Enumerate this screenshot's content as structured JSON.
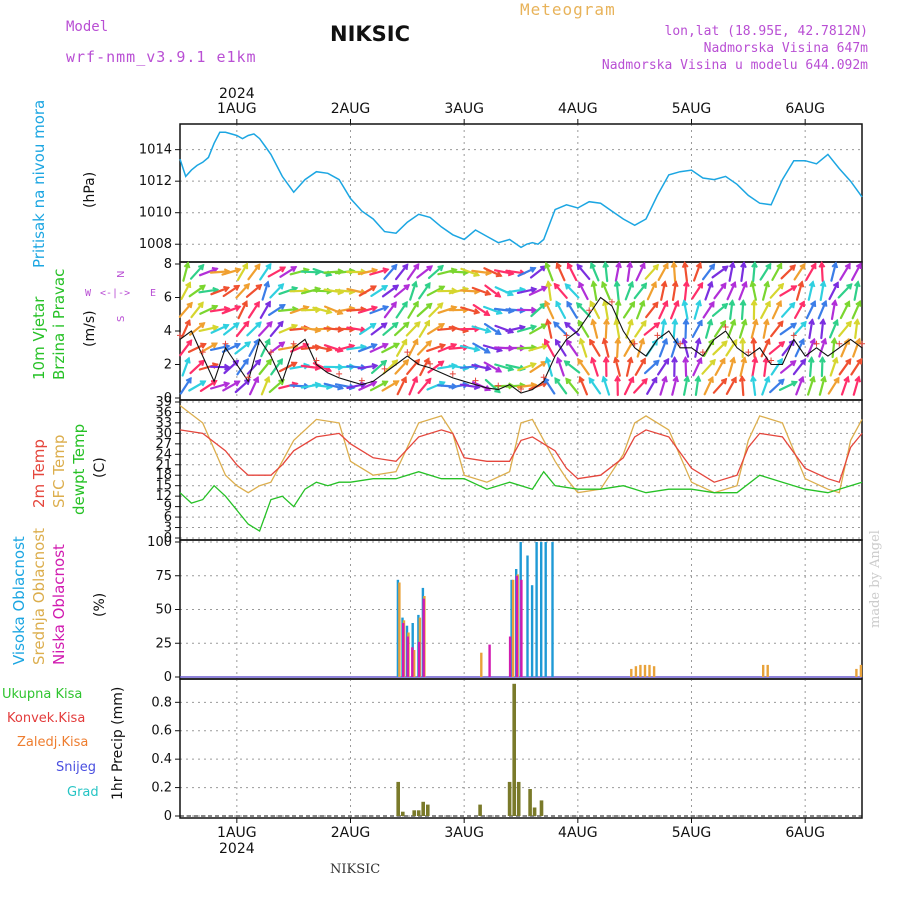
{
  "header": {
    "model_label": "Model",
    "model_value": "wrf-nmm_v3.9.1 e1km",
    "station": "NIKSIC",
    "meteogram": "Meteogram",
    "lonlat": "lon,lat (18.95E, 42.7812N)",
    "altitude": "Nadmorska Visina 647m",
    "model_altitude": "Nadmorska Visina u modelu 644.092m"
  },
  "footer": {
    "station": "NIKSIC",
    "watermark": "made by Angel"
  },
  "time_axis": {
    "year": "2024",
    "days": [
      "1AUG",
      "2AUG",
      "3AUG",
      "4AUG",
      "5AUG",
      "6AUG"
    ],
    "start_day": 0.5,
    "end_day": 6.5
  },
  "colors": {
    "pressure": "#1ca6e2",
    "temp2m": "#e5463c",
    "sfc_temp": "#dcae4d",
    "dewpt": "#26c126",
    "high_cloud": "#1e9ad6",
    "mid_cloud": "#e8a23a",
    "low_cloud": "#d11bb0",
    "total_rain": "#2fc42f",
    "conv_rain": "#e33b3b",
    "freezing_rain": "#ee7d2f",
    "snow": "#4a4fe0",
    "hail": "#26c4c4",
    "precip_bar": "#7a7a2a",
    "wind_label": "#b94fd4"
  },
  "chart_data": [
    {
      "type": "line",
      "panel": "pressure",
      "title": "Pritisak na nivou mora",
      "ylabel": "(hPa)",
      "ylim": [
        1007,
        1015.5
      ],
      "yticks": [
        1008,
        1010,
        1012,
        1014
      ],
      "grid": true,
      "series": [
        {
          "name": "Pritisak na nivou mora",
          "x": [
            0.5,
            0.55,
            0.6,
            0.65,
            0.7,
            0.75,
            0.8,
            0.85,
            0.9,
            0.95,
            1.0,
            1.05,
            1.1,
            1.15,
            1.2,
            1.25,
            1.3,
            1.35,
            1.4,
            1.5,
            1.6,
            1.7,
            1.8,
            1.9,
            2.0,
            2.1,
            2.2,
            2.3,
            2.4,
            2.5,
            2.6,
            2.7,
            2.8,
            2.9,
            3.0,
            3.1,
            3.2,
            3.3,
            3.4,
            3.5,
            3.55,
            3.6,
            3.65,
            3.7,
            3.8,
            3.9,
            4.0,
            4.1,
            4.2,
            4.3,
            4.4,
            4.5,
            4.6,
            4.7,
            4.8,
            4.9,
            5.0,
            5.1,
            5.2,
            5.3,
            5.4,
            5.5,
            5.6,
            5.7,
            5.8,
            5.9,
            6.0,
            6.1,
            6.2,
            6.3,
            6.4,
            6.5
          ],
          "values": [
            1013.4,
            1012.3,
            1012.7,
            1013.0,
            1013.2,
            1013.5,
            1014.4,
            1015.1,
            1015.1,
            1015.0,
            1014.9,
            1014.7,
            1014.9,
            1015.0,
            1014.7,
            1014.2,
            1013.7,
            1013.0,
            1012.3,
            1011.3,
            1012.1,
            1012.6,
            1012.5,
            1012.1,
            1010.9,
            1010.1,
            1009.6,
            1008.8,
            1008.7,
            1009.4,
            1009.9,
            1009.7,
            1009.1,
            1008.6,
            1008.3,
            1008.9,
            1008.5,
            1008.1,
            1008.3,
            1007.8,
            1008.0,
            1008.1,
            1008.0,
            1008.3,
            1010.2,
            1010.5,
            1010.3,
            1010.7,
            1010.6,
            1010.1,
            1009.6,
            1009.2,
            1009.6,
            1011.1,
            1012.4,
            1012.6,
            1012.7,
            1012.2,
            1012.1,
            1012.3,
            1011.8,
            1011.1,
            1010.6,
            1010.5,
            1012.1,
            1013.3,
            1013.3,
            1013.1,
            1013.7,
            1012.8,
            1012.0,
            1011.0
          ]
        }
      ]
    },
    {
      "type": "line",
      "panel": "wind",
      "title": "10m Vjetar Brzina i Pravac",
      "ylabel": "(m/s)",
      "ylim": [
        0,
        8
      ],
      "yticks": [
        0,
        2,
        4,
        6,
        8
      ],
      "direction_legend": [
        "N",
        "<-|->",
        "W",
        "E",
        "S"
      ],
      "series": [
        {
          "name": "10m Vjetar",
          "x": [
            0.5,
            0.6,
            0.7,
            0.8,
            0.9,
            1.0,
            1.1,
            1.2,
            1.3,
            1.4,
            1.5,
            1.6,
            1.7,
            1.8,
            1.9,
            2.0,
            2.1,
            2.2,
            2.3,
            2.4,
            2.5,
            2.6,
            2.7,
            2.8,
            2.9,
            3.0,
            3.1,
            3.2,
            3.3,
            3.4,
            3.5,
            3.6,
            3.7,
            3.8,
            3.9,
            4.0,
            4.1,
            4.2,
            4.3,
            4.4,
            4.5,
            4.6,
            4.7,
            4.8,
            4.9,
            5.0,
            5.1,
            5.2,
            5.3,
            5.4,
            5.5,
            5.6,
            5.7,
            5.8,
            5.9,
            6.0,
            6.1,
            6.2,
            6.3,
            6.4,
            6.5
          ],
          "values": [
            3.5,
            4.0,
            2.5,
            1.0,
            3.0,
            2.0,
            1.0,
            3.5,
            2.5,
            1.0,
            3.0,
            3.5,
            2.0,
            1.5,
            1.2,
            1.0,
            0.8,
            1.0,
            1.5,
            2.0,
            2.5,
            2.0,
            1.8,
            1.5,
            1.2,
            1.0,
            0.8,
            0.6,
            0.5,
            0.8,
            0.3,
            0.5,
            1.0,
            2.5,
            3.5,
            4.0,
            5.0,
            6.0,
            5.5,
            4.0,
            3.0,
            2.5,
            3.5,
            4.0,
            3.0,
            3.0,
            2.5,
            3.5,
            4.0,
            3.0,
            2.5,
            3.0,
            2.0,
            2.0,
            3.5,
            2.5,
            3.0,
            2.5,
            3.0,
            3.5,
            3.0
          ]
        }
      ],
      "direction_deg": [
        200,
        210,
        230,
        250,
        260,
        240,
        220,
        200,
        210,
        230,
        250,
        260,
        270,
        280,
        280,
        270,
        260,
        250,
        240,
        230,
        220,
        210,
        220,
        240,
        260,
        270,
        280,
        290,
        300,
        280,
        270,
        260,
        240,
        160,
        150,
        140,
        150,
        160,
        170,
        180,
        200,
        210,
        220,
        200,
        190,
        180,
        200,
        210,
        220,
        200,
        190,
        180,
        200,
        220,
        230,
        210,
        200,
        190,
        200,
        210,
        200
      ]
    },
    {
      "type": "line",
      "panel": "temperature",
      "ylabel": "(C)",
      "ylim": [
        0,
        39
      ],
      "yticks": [
        0,
        3,
        6,
        9,
        12,
        15,
        18,
        21,
        24,
        27,
        30,
        33,
        36,
        39
      ],
      "grid": true,
      "series": [
        {
          "name": "2m Temp",
          "x": [
            0.5,
            0.7,
            0.9,
            1.0,
            1.1,
            1.2,
            1.3,
            1.4,
            1.5,
            1.7,
            1.9,
            2.0,
            2.2,
            2.4,
            2.6,
            2.8,
            2.9,
            3.0,
            3.2,
            3.4,
            3.5,
            3.6,
            3.8,
            3.9,
            4.0,
            4.2,
            4.4,
            4.5,
            4.6,
            4.8,
            5.0,
            5.2,
            5.4,
            5.5,
            5.6,
            5.8,
            6.0,
            6.2,
            6.3,
            6.4,
            6.5
          ],
          "values": [
            31,
            30,
            25,
            21,
            18,
            18,
            18,
            21,
            25,
            29,
            30,
            27,
            23,
            22,
            29,
            31,
            30,
            23,
            22,
            22,
            28,
            29,
            25,
            20,
            17,
            18,
            23,
            29,
            31,
            29,
            20,
            16,
            18,
            26,
            30,
            29,
            20,
            17,
            16,
            26,
            30
          ]
        },
        {
          "name": "SFC Temp",
          "x": [
            0.5,
            0.7,
            0.9,
            1.0,
            1.1,
            1.2,
            1.3,
            1.4,
            1.5,
            1.7,
            1.9,
            2.0,
            2.2,
            2.4,
            2.6,
            2.8,
            2.9,
            3.0,
            3.2,
            3.4,
            3.5,
            3.6,
            3.8,
            3.9,
            4.0,
            4.2,
            4.4,
            4.5,
            4.6,
            4.8,
            5.0,
            5.2,
            5.4,
            5.5,
            5.6,
            5.8,
            6.0,
            6.2,
            6.3,
            6.4,
            6.5
          ],
          "values": [
            38,
            33,
            18,
            15,
            13,
            15,
            16,
            22,
            28,
            34,
            33,
            22,
            18,
            19,
            33,
            35,
            30,
            18,
            16,
            19,
            33,
            34,
            22,
            17,
            13,
            14,
            24,
            33,
            35,
            31,
            16,
            13,
            15,
            28,
            35,
            33,
            17,
            14,
            13,
            28,
            34
          ]
        },
        {
          "name": "dewpt Temp",
          "x": [
            0.5,
            0.6,
            0.7,
            0.8,
            0.9,
            1.0,
            1.1,
            1.2,
            1.3,
            1.4,
            1.5,
            1.6,
            1.7,
            1.8,
            1.9,
            2.0,
            2.2,
            2.4,
            2.6,
            2.8,
            3.0,
            3.2,
            3.4,
            3.6,
            3.7,
            3.8,
            4.0,
            4.2,
            4.4,
            4.6,
            4.8,
            5.0,
            5.2,
            5.4,
            5.6,
            5.8,
            6.0,
            6.2,
            6.4,
            6.5
          ],
          "values": [
            13,
            10,
            11,
            15,
            12,
            8,
            4,
            2,
            11,
            12,
            9,
            14,
            16,
            15,
            16,
            16,
            17,
            17,
            19,
            17,
            17,
            14,
            16,
            14,
            19,
            15,
            14,
            14,
            15,
            13,
            14,
            14,
            13,
            13,
            18,
            16,
            14,
            13,
            15,
            16
          ]
        }
      ]
    },
    {
      "type": "bar",
      "panel": "clouds",
      "ylabel": "(%)",
      "ylim": [
        0,
        100
      ],
      "yticks": [
        0,
        25,
        50,
        75,
        100
      ],
      "grid": true,
      "series": [
        {
          "name": "Visoka Oblacnost",
          "x": [
            2.42,
            2.46,
            2.5,
            2.55,
            2.6,
            2.64,
            3.42,
            3.46,
            3.5,
            3.56,
            3.6,
            3.64,
            3.68,
            3.72,
            3.78
          ],
          "values": [
            72,
            44,
            38,
            40,
            46,
            66,
            72,
            80,
            100,
            90,
            68,
            100,
            100,
            100,
            100
          ]
        },
        {
          "name": "Srednja Oblacnost",
          "x": [
            2.42,
            2.46,
            2.5,
            2.55,
            2.6,
            2.64,
            3.14,
            3.42,
            3.46,
            4.46,
            4.5,
            4.54,
            4.58,
            4.62,
            4.66,
            5.62,
            5.66,
            6.44,
            6.48
          ],
          "values": [
            70,
            42,
            33,
            20,
            44,
            60,
            18,
            72,
            76,
            6,
            8,
            9,
            9,
            9,
            8,
            9,
            9,
            6,
            9
          ]
        },
        {
          "name": "Niska Oblacnost",
          "x": [
            2.44,
            2.48,
            2.52,
            2.58,
            2.62,
            3.2,
            3.38,
            3.44,
            3.48
          ],
          "values": [
            40,
            30,
            22,
            26,
            58,
            24,
            30,
            75,
            72
          ]
        }
      ]
    },
    {
      "type": "bar",
      "panel": "precip",
      "ylabel": "1hr Precip (mm)",
      "ylim": [
        0,
        0.95
      ],
      "yticks": [
        0,
        0.2,
        0.4,
        0.6,
        0.8
      ],
      "grid": true,
      "series": [
        {
          "name": "Ukupna Kisa",
          "x": [
            2.42,
            2.46,
            2.56,
            2.6,
            2.64,
            2.68,
            3.14,
            3.4,
            3.44,
            3.48,
            3.58,
            3.62,
            3.68
          ],
          "values": [
            0.24,
            0.03,
            0.04,
            0.04,
            0.1,
            0.08,
            0.08,
            0.24,
            0.93,
            0.24,
            0.19,
            0.06,
            0.11
          ]
        }
      ],
      "legend": [
        "Ukupna Kisa",
        "Konvek.Kisa",
        "Zaledj.Kisa",
        "Snijeg",
        "Grad"
      ]
    }
  ]
}
